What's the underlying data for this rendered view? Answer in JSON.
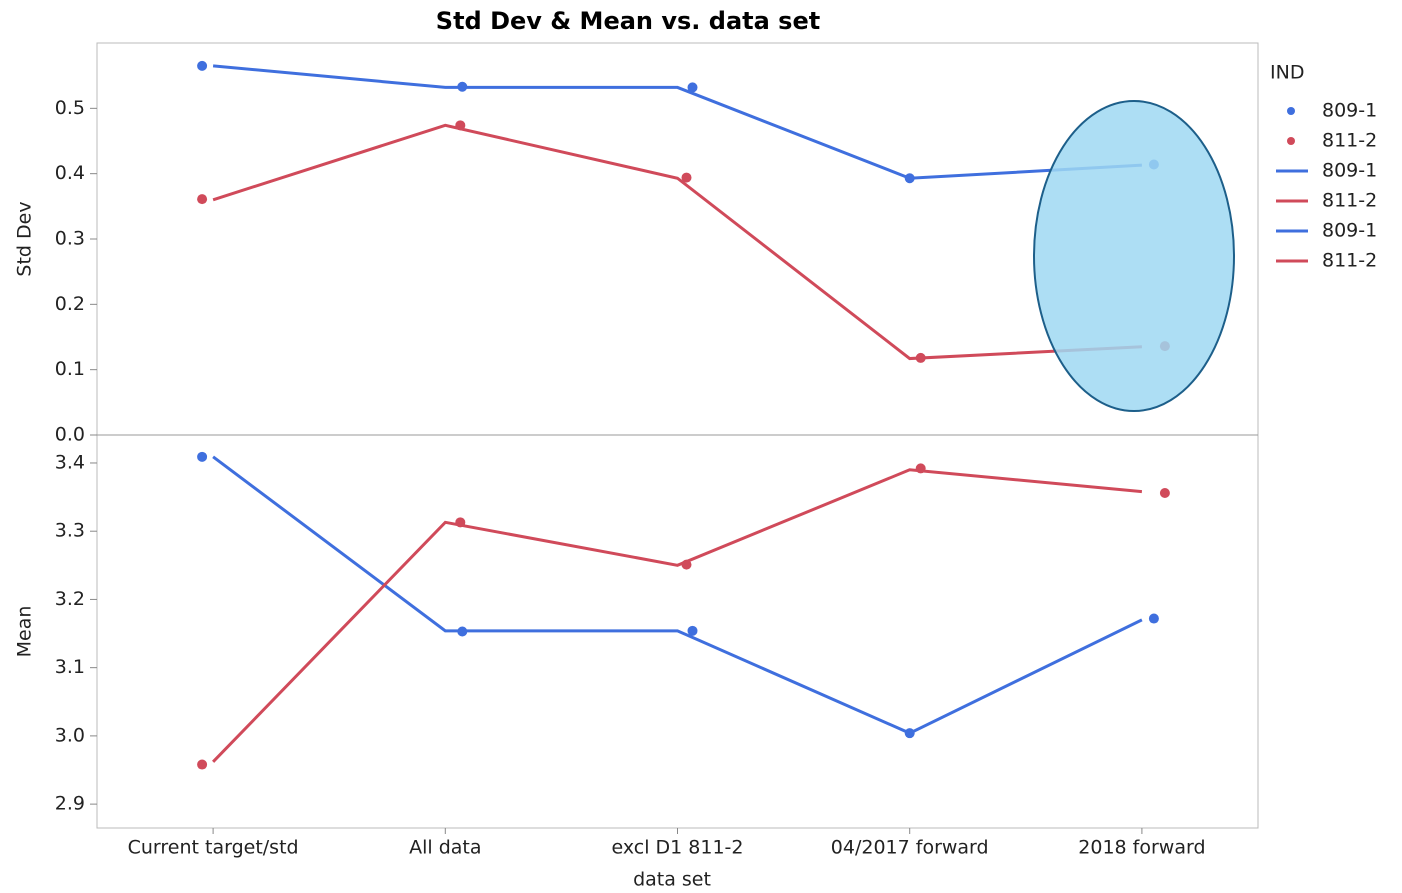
{
  "chart_data": {
    "type": "line",
    "title": "Std Dev & Mean vs. data set",
    "x_label": "data set",
    "categories": [
      "Current target/std",
      "All data",
      "excl D1 811-2",
      "04/2017 forward",
      "2018 forward"
    ],
    "legend_title": "IND",
    "panels": [
      {
        "y_label": "Std Dev",
        "ylim": [
          0,
          0.6
        ],
        "yticks": [
          {
            "value": 0,
            "label": "0.0"
          },
          0.1,
          0.2,
          0.3,
          0.4,
          0.5
        ]
      },
      {
        "y_label": "Mean",
        "ylim": [
          2.865,
          3.441
        ],
        "yticks": [
          2.9,
          {
            "value": 3,
            "label": "3.0"
          },
          3.1,
          3.2,
          3.3,
          3.4
        ]
      }
    ],
    "series": [
      {
        "name": "809-1",
        "color": "#3f6fde",
        "style": "points",
        "values": [
          [
            0.565,
            0.533,
            0.532,
            0.393,
            0.414
          ],
          [
            3.409,
            3.153,
            3.154,
            3.004,
            3.172
          ]
        ]
      },
      {
        "name": "811-2",
        "color": "#d04a5a",
        "style": "points",
        "values": [
          [
            0.361,
            0.474,
            0.394,
            0.118,
            0.136
          ],
          [
            2.958,
            3.313,
            3.251,
            3.392,
            3.356
          ]
        ]
      },
      {
        "name": "809-1",
        "color": "#3f6fde",
        "style": "line",
        "panel": 0,
        "values": [
          0.565,
          0.532,
          0.532,
          0.393,
          0.413
        ]
      },
      {
        "name": "811-2",
        "color": "#d04a5a",
        "style": "line",
        "panel": 0,
        "values": [
          0.36,
          0.474,
          0.393,
          0.117,
          0.135
        ]
      },
      {
        "name": "809-1",
        "color": "#3f6fde",
        "style": "line",
        "panel": 1,
        "values": [
          3.409,
          3.154,
          3.154,
          3.004,
          3.17
        ]
      },
      {
        "name": "811-2",
        "color": "#d04a5a",
        "style": "line",
        "panel": 1,
        "values": [
          2.962,
          3.313,
          3.25,
          3.39,
          3.358
        ]
      }
    ]
  }
}
